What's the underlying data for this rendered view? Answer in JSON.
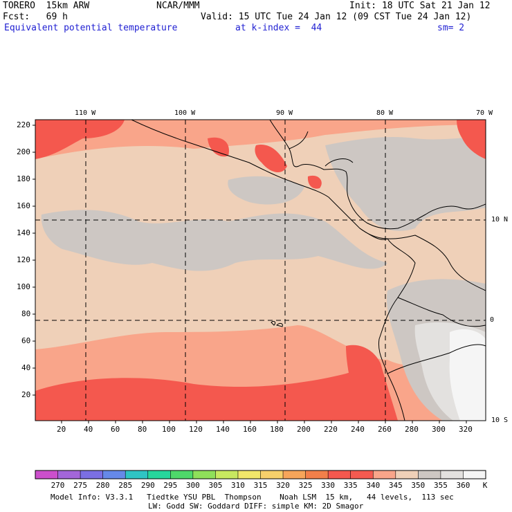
{
  "header": {
    "model": "TORERO  15km ARW",
    "org": "NCAR/MMM",
    "init": "Init: 18 UTC Sat 21 Jan 12",
    "fcst": "Fcst:   69 h",
    "valid": "Valid: 15 UTC Tue 24 Jan 12 (09 CST Tue 24 Jan 12)",
    "field": "Equivalent potential temperature",
    "level": "at k-index =  44",
    "smooth": "sm= 2"
  },
  "map": {
    "lon_labels": [
      "110 W",
      "100 W",
      "90 W",
      "80 W",
      "70 W"
    ],
    "lat_labels": [
      "10 N",
      "0",
      "10 S"
    ],
    "y_ticks": [
      "220",
      "200",
      "180",
      "160",
      "140",
      "120",
      "100",
      "80",
      "60",
      "40",
      "20"
    ],
    "x_ticks": [
      "20",
      "40",
      "60",
      "80",
      "100",
      "120",
      "140",
      "160",
      "180",
      "200",
      "220",
      "240",
      "260",
      "280",
      "300",
      "320"
    ],
    "colors": {
      "c335": "#f4584e",
      "c340": "#f9a58a",
      "c345": "#efd0b8",
      "c350": "#cdc7c3",
      "c355": "#e3e1df",
      "c360": "#f5f5f5"
    }
  },
  "colorbar": {
    "colors": [
      "#cc4fcc",
      "#a366d9",
      "#7b6fe3",
      "#6689e8",
      "#2fc4c4",
      "#27d69c",
      "#4ed86a",
      "#8fe05a",
      "#c8e860",
      "#f1e76a",
      "#f7d06b",
      "#f6a55a",
      "#f27f4a",
      "#f4584e",
      "#f45a50",
      "#f9a58a",
      "#efd0b8",
      "#cdc7c3",
      "#e3e1df",
      "#f5f5f5"
    ],
    "labels": [
      "270",
      "275",
      "280",
      "285",
      "290",
      "295",
      "300",
      "305",
      "310",
      "315",
      "320",
      "325",
      "330",
      "335",
      "340",
      "345",
      "350",
      "355",
      "360"
    ],
    "unit": "K"
  },
  "footer": {
    "line1": "Model Info: V3.3.1   Tiedtke YSU PBL  Thompson    Noah LSM  15 km,   44 levels,  113 sec",
    "line2": "LW: Godd SW: Goddard DIFF: simple KM: 2D Smagor"
  }
}
